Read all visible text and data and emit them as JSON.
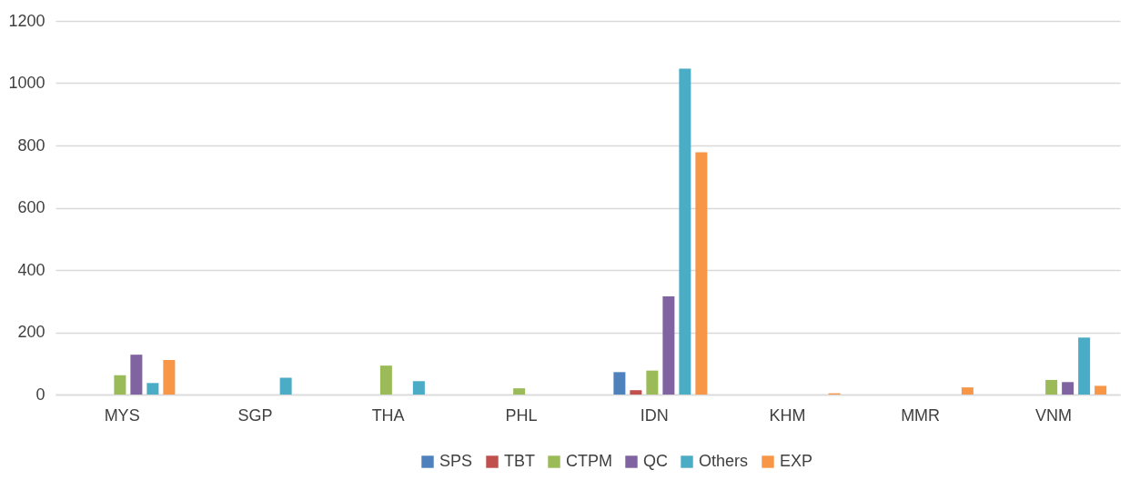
{
  "chart_data": {
    "type": "bar",
    "categories": [
      "MYS",
      "SGP",
      "THA",
      "PHL",
      "IDN",
      "KHM",
      "MMR",
      "VNM"
    ],
    "series": [
      {
        "name": "SPS",
        "color": "#4f81bd",
        "values": [
          0,
          0,
          0,
          0,
          72,
          0,
          0,
          0
        ]
      },
      {
        "name": "TBT",
        "color": "#c0504d",
        "values": [
          0,
          0,
          0,
          0,
          14,
          0,
          0,
          0
        ]
      },
      {
        "name": "CTPM",
        "color": "#9bbb59",
        "values": [
          62,
          0,
          93,
          20,
          77,
          0,
          0,
          47
        ]
      },
      {
        "name": "QC",
        "color": "#8064a2",
        "values": [
          128,
          0,
          0,
          0,
          315,
          0,
          0,
          40
        ]
      },
      {
        "name": "Others",
        "color": "#4bacc6",
        "values": [
          37,
          54,
          43,
          0,
          1047,
          0,
          0,
          183
        ]
      },
      {
        "name": "EXP",
        "color": "#f79646",
        "values": [
          111,
          0,
          0,
          0,
          778,
          4,
          23,
          28
        ]
      }
    ],
    "ylim": [
      0,
      1200
    ],
    "yticks": [
      0,
      200,
      400,
      600,
      800,
      1000,
      1200
    ],
    "grid": "y",
    "legend": "bottom"
  }
}
